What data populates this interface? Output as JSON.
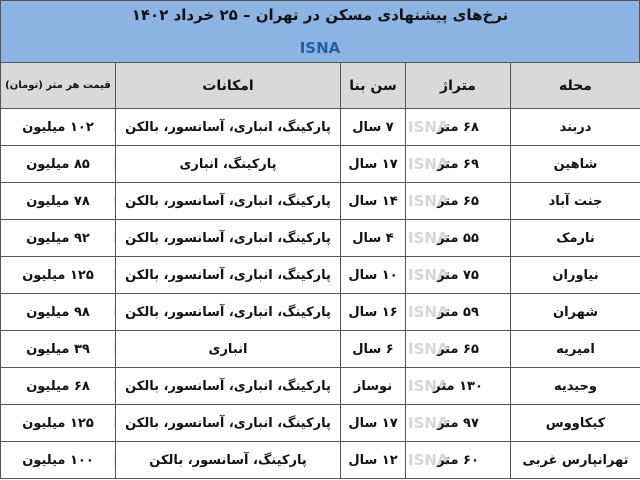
{
  "header": {
    "title": "نرخ‌های پیشنهادی مسکن در تهران – ۲۵ خرداد ۱۴۰۲",
    "source": "ISNA"
  },
  "watermark": "ISNA",
  "table": {
    "columns": [
      "محله",
      "متراژ",
      "سن بنا",
      "امکانات",
      "قیمت هر متر (تومان)"
    ],
    "rows": [
      [
        "دربند",
        "۶۸ متر",
        "۷ سال",
        "پارکینگ، انباری، آسانسور، بالکن",
        "۱۰۲ میلیون"
      ],
      [
        "شاهین",
        "۶۹ متر",
        "۱۷ سال",
        "پارکینگ، انباری",
        "۸۵ میلیون"
      ],
      [
        "جنت آباد",
        "۶۵ متر",
        "۱۴ سال",
        "پارکینگ، انباری، آسانسور، بالکن",
        "۷۸ میلیون"
      ],
      [
        "نارمک",
        "۵۵ متر",
        "۴ سال",
        "پارکینگ، انباری، آسانسور، بالکن",
        "۹۲ میلیون"
      ],
      [
        "نیاوران",
        "۷۵ متر",
        "۱۰ سال",
        "پارکینگ، انباری، آسانسور، بالکن",
        "۱۲۵ میلیون"
      ],
      [
        "شهران",
        "۵۹ متر",
        "۱۶ سال",
        "پارکینگ، انباری، آسانسور، بالکن",
        "۹۸ میلیون"
      ],
      [
        "امیریه",
        "۶۵ متر",
        "۶ سال",
        "انباری",
        "۳۹ میلیون"
      ],
      [
        "وحیدیه",
        "۱۳۰ متر",
        "نوساز",
        "پارکینگ، انباری، آسانسور، بالکن",
        "۶۸ میلیون"
      ],
      [
        "کیکاووس",
        "۹۷ متر",
        "۱۷ سال",
        "پارکینگ، انباری، آسانسور، بالکن",
        "۱۲۵ میلیون"
      ],
      [
        "تهرانپارس غربی",
        "۶۰ متر",
        "۱۲ سال",
        "پارکینگ، آسانسور، بالکن",
        "۱۰۰ میلیون"
      ]
    ]
  }
}
